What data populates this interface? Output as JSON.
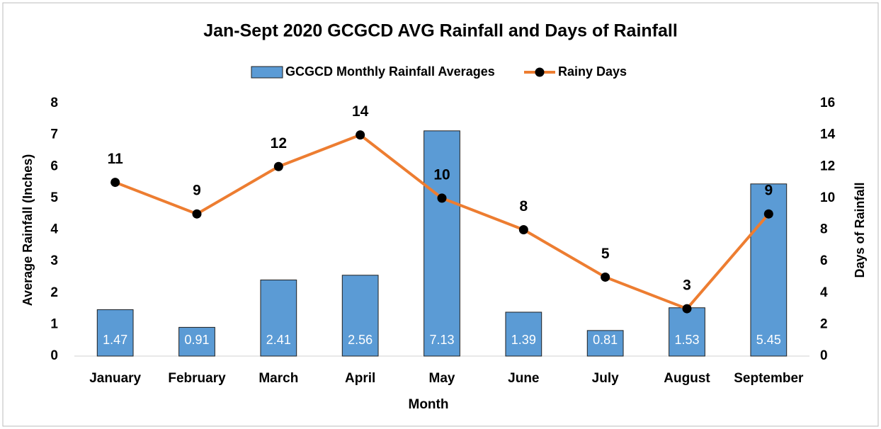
{
  "chart_data": {
    "type": "bar",
    "title": "Jan-Sept 2020 GCGCD AVG Rainfall and Days of Rainfall",
    "x_label": "Month",
    "y_label": "Average Rainfall (Inches)",
    "y2_label": "Days of Rainfall",
    "categories": [
      "January",
      "February",
      "March",
      "April",
      "May",
      "June",
      "July",
      "August",
      "September"
    ],
    "series": [
      {
        "name": "GCGCD Monthly Rainfall Averages",
        "type": "bar",
        "color": "#5b9bd5",
        "values": [
          1.47,
          0.91,
          2.41,
          2.56,
          7.13,
          1.39,
          0.81,
          1.53,
          5.45
        ]
      },
      {
        "name": "Rainy Days",
        "type": "line",
        "axis": "y2",
        "color": "#ed7d31",
        "marker_color": "#000000",
        "values": [
          11,
          9,
          12,
          14,
          10,
          8,
          5,
          3,
          9
        ]
      }
    ],
    "ylim": [
      0,
      8
    ],
    "yticks": [
      0,
      1,
      2,
      3,
      4,
      5,
      6,
      7,
      8
    ],
    "y2lim": [
      0,
      16
    ],
    "y2ticks": [
      0,
      2,
      4,
      6,
      8,
      10,
      12,
      14,
      16
    ],
    "legend": "top",
    "grid": false
  }
}
